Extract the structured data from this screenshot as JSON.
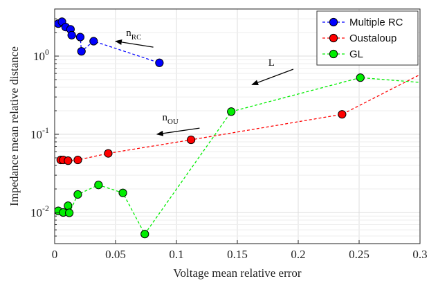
{
  "chart_data": {
    "type": "scatter",
    "xlabel": "Voltage mean relative error",
    "ylabel": "Impedance mean relative distance",
    "xlim": [
      0,
      0.3
    ],
    "ylim": [
      0.004,
      4
    ],
    "yscale": "log",
    "grid": true,
    "legend_position": "top-right",
    "x_ticks": [
      {
        "v": 0,
        "label": "0"
      },
      {
        "v": 0.05,
        "label": "0.05"
      },
      {
        "v": 0.1,
        "label": "0.1"
      },
      {
        "v": 0.15,
        "label": "0.15"
      },
      {
        "v": 0.2,
        "label": "0.2"
      },
      {
        "v": 0.25,
        "label": "0.25"
      },
      {
        "v": 0.3,
        "label": "0.3"
      }
    ],
    "y_ticks": [
      {
        "v": 0.01,
        "base": "10",
        "exp": "-2"
      },
      {
        "v": 0.1,
        "base": "10",
        "exp": "-1"
      },
      {
        "v": 1,
        "base": "10",
        "exp": "0"
      }
    ],
    "series": [
      {
        "name": "Multiple RC",
        "color": "#0000ff",
        "points": [
          [
            0.003,
            2.6
          ],
          [
            0.006,
            2.75
          ],
          [
            0.009,
            2.35
          ],
          [
            0.013,
            2.2
          ],
          [
            0.014,
            1.85
          ],
          [
            0.021,
            1.75
          ],
          [
            0.022,
            1.15
          ],
          [
            0.032,
            1.55
          ],
          [
            0.086,
            0.82
          ]
        ]
      },
      {
        "name": "Oustaloup",
        "color": "#ff0000",
        "points": [
          [
            0.005,
            0.047
          ],
          [
            0.007,
            0.047
          ],
          [
            0.011,
            0.046
          ],
          [
            0.019,
            0.047
          ],
          [
            0.044,
            0.057
          ],
          [
            0.112,
            0.085
          ],
          [
            0.236,
            0.18
          ],
          [
            0.3,
            0.58
          ]
        ]
      },
      {
        "name": "GL",
        "color": "#00ee00",
        "points": [
          [
            0.003,
            0.0105
          ],
          [
            0.007,
            0.01
          ],
          [
            0.011,
            0.0122
          ],
          [
            0.012,
            0.0099
          ],
          [
            0.019,
            0.017
          ],
          [
            0.036,
            0.0225
          ],
          [
            0.056,
            0.0178
          ],
          [
            0.074,
            0.0053
          ],
          [
            0.145,
            0.195
          ],
          [
            0.251,
            0.53
          ],
          [
            0.3,
            0.46
          ]
        ]
      }
    ],
    "annotations": [
      {
        "main": "n",
        "sub": "RC",
        "text_at": [
          0.065,
          1.8
        ],
        "arrow_from": [
          0.081,
          1.3
        ],
        "arrow_to": [
          0.05,
          1.55
        ]
      },
      {
        "main": "L",
        "sub": "",
        "text_at": [
          0.178,
          0.75
        ],
        "arrow_from": [
          0.196,
          0.68
        ],
        "arrow_to": [
          0.162,
          0.43
        ]
      },
      {
        "main": "n",
        "sub": "OU",
        "text_at": [
          0.095,
          0.15
        ],
        "arrow_from": [
          0.119,
          0.12
        ],
        "arrow_to": [
          0.084,
          0.1
        ]
      }
    ]
  }
}
